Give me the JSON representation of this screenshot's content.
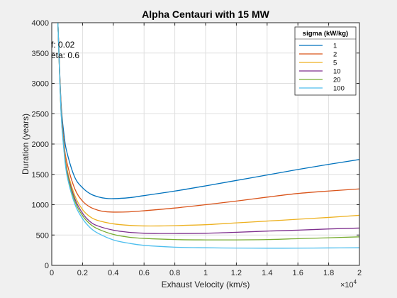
{
  "chart_data": {
    "type": "line",
    "title": "Alpha Centauri with 15 MW",
    "xlabel": "Exhaust Velocity (km/s)",
    "ylabel": "Duration (years)",
    "x_exponent_label": "×10",
    "x_exponent_power": "4",
    "xlim": [
      0,
      20000
    ],
    "ylim": [
      0,
      4000
    ],
    "x_ticks": [
      0,
      2000,
      4000,
      6000,
      8000,
      10000,
      12000,
      14000,
      16000,
      18000,
      20000
    ],
    "x_tick_labels": [
      "0",
      "0.2",
      "0.4",
      "0.6",
      "0.8",
      "1",
      "1.2",
      "1.4",
      "1.6",
      "1.8",
      "2"
    ],
    "y_ticks": [
      0,
      500,
      1000,
      1500,
      2000,
      2500,
      3000,
      3500,
      4000
    ],
    "y_tick_labels": [
      "0",
      "500",
      "1000",
      "1500",
      "2000",
      "2500",
      "3000",
      "3500",
      "4000"
    ],
    "grid": true,
    "legend_position": "top-right",
    "legend_title": "sigma (kW/kg)",
    "annotations": [
      "f: 0.02",
      "eta: 0.6"
    ],
    "series": [
      {
        "name": "1",
        "color": "#0072bd",
        "x": [
          400,
          600,
          800,
          1000,
          1500,
          2000,
          2500,
          3000,
          3500,
          4000,
          5000,
          6000,
          8000,
          10000,
          12000,
          14000,
          16000,
          18000,
          20000
        ],
        "y": [
          4000,
          2700,
          2150,
          1850,
          1450,
          1280,
          1180,
          1130,
          1105,
          1100,
          1115,
          1150,
          1225,
          1310,
          1400,
          1490,
          1580,
          1665,
          1745
        ]
      },
      {
        "name": "2",
        "color": "#d95319",
        "x": [
          400,
          600,
          800,
          1000,
          1500,
          2000,
          2500,
          3000,
          3500,
          4000,
          5000,
          6000,
          8000,
          10000,
          12000,
          14000,
          16000,
          18000,
          20000
        ],
        "y": [
          4000,
          2650,
          2000,
          1680,
          1260,
          1060,
          960,
          910,
          885,
          878,
          882,
          900,
          945,
          1000,
          1060,
          1125,
          1185,
          1225,
          1260
        ]
      },
      {
        "name": "5",
        "color": "#edb120",
        "x": [
          400,
          600,
          800,
          1000,
          1500,
          2000,
          2500,
          3000,
          4000,
          5000,
          6000,
          7000,
          8000,
          10000,
          12000,
          14000,
          16000,
          18000,
          20000
        ],
        "y": [
          4000,
          2600,
          1950,
          1580,
          1150,
          920,
          800,
          740,
          685,
          660,
          650,
          650,
          655,
          670,
          700,
          730,
          760,
          790,
          825
        ]
      },
      {
        "name": "10",
        "color": "#7e2f8e",
        "x": [
          400,
          600,
          800,
          1000,
          1500,
          2000,
          2500,
          3000,
          4000,
          5000,
          6000,
          7000,
          8000,
          10000,
          12000,
          14000,
          16000,
          18000,
          20000
        ],
        "y": [
          4000,
          2580,
          1920,
          1540,
          1100,
          860,
          720,
          650,
          580,
          545,
          530,
          525,
          525,
          530,
          545,
          565,
          580,
          600,
          615
        ]
      },
      {
        "name": "20",
        "color": "#77ac30",
        "x": [
          400,
          600,
          800,
          1000,
          1500,
          2000,
          2500,
          3000,
          4000,
          5000,
          6000,
          8000,
          10000,
          12000,
          14000,
          16000,
          18000,
          20000
        ],
        "y": [
          4000,
          2560,
          1900,
          1510,
          1060,
          820,
          680,
          600,
          510,
          465,
          445,
          425,
          420,
          420,
          425,
          440,
          455,
          470
        ]
      },
      {
        "name": "100",
        "color": "#4dbeee",
        "x": [
          400,
          600,
          800,
          1000,
          1500,
          2000,
          2500,
          3000,
          4000,
          5000,
          6000,
          8000,
          10000,
          12000,
          14000,
          16000,
          18000,
          20000
        ],
        "y": [
          4000,
          2540,
          1870,
          1470,
          1010,
          770,
          620,
          530,
          420,
          365,
          330,
          300,
          290,
          285,
          283,
          284,
          287,
          290
        ]
      }
    ]
  }
}
